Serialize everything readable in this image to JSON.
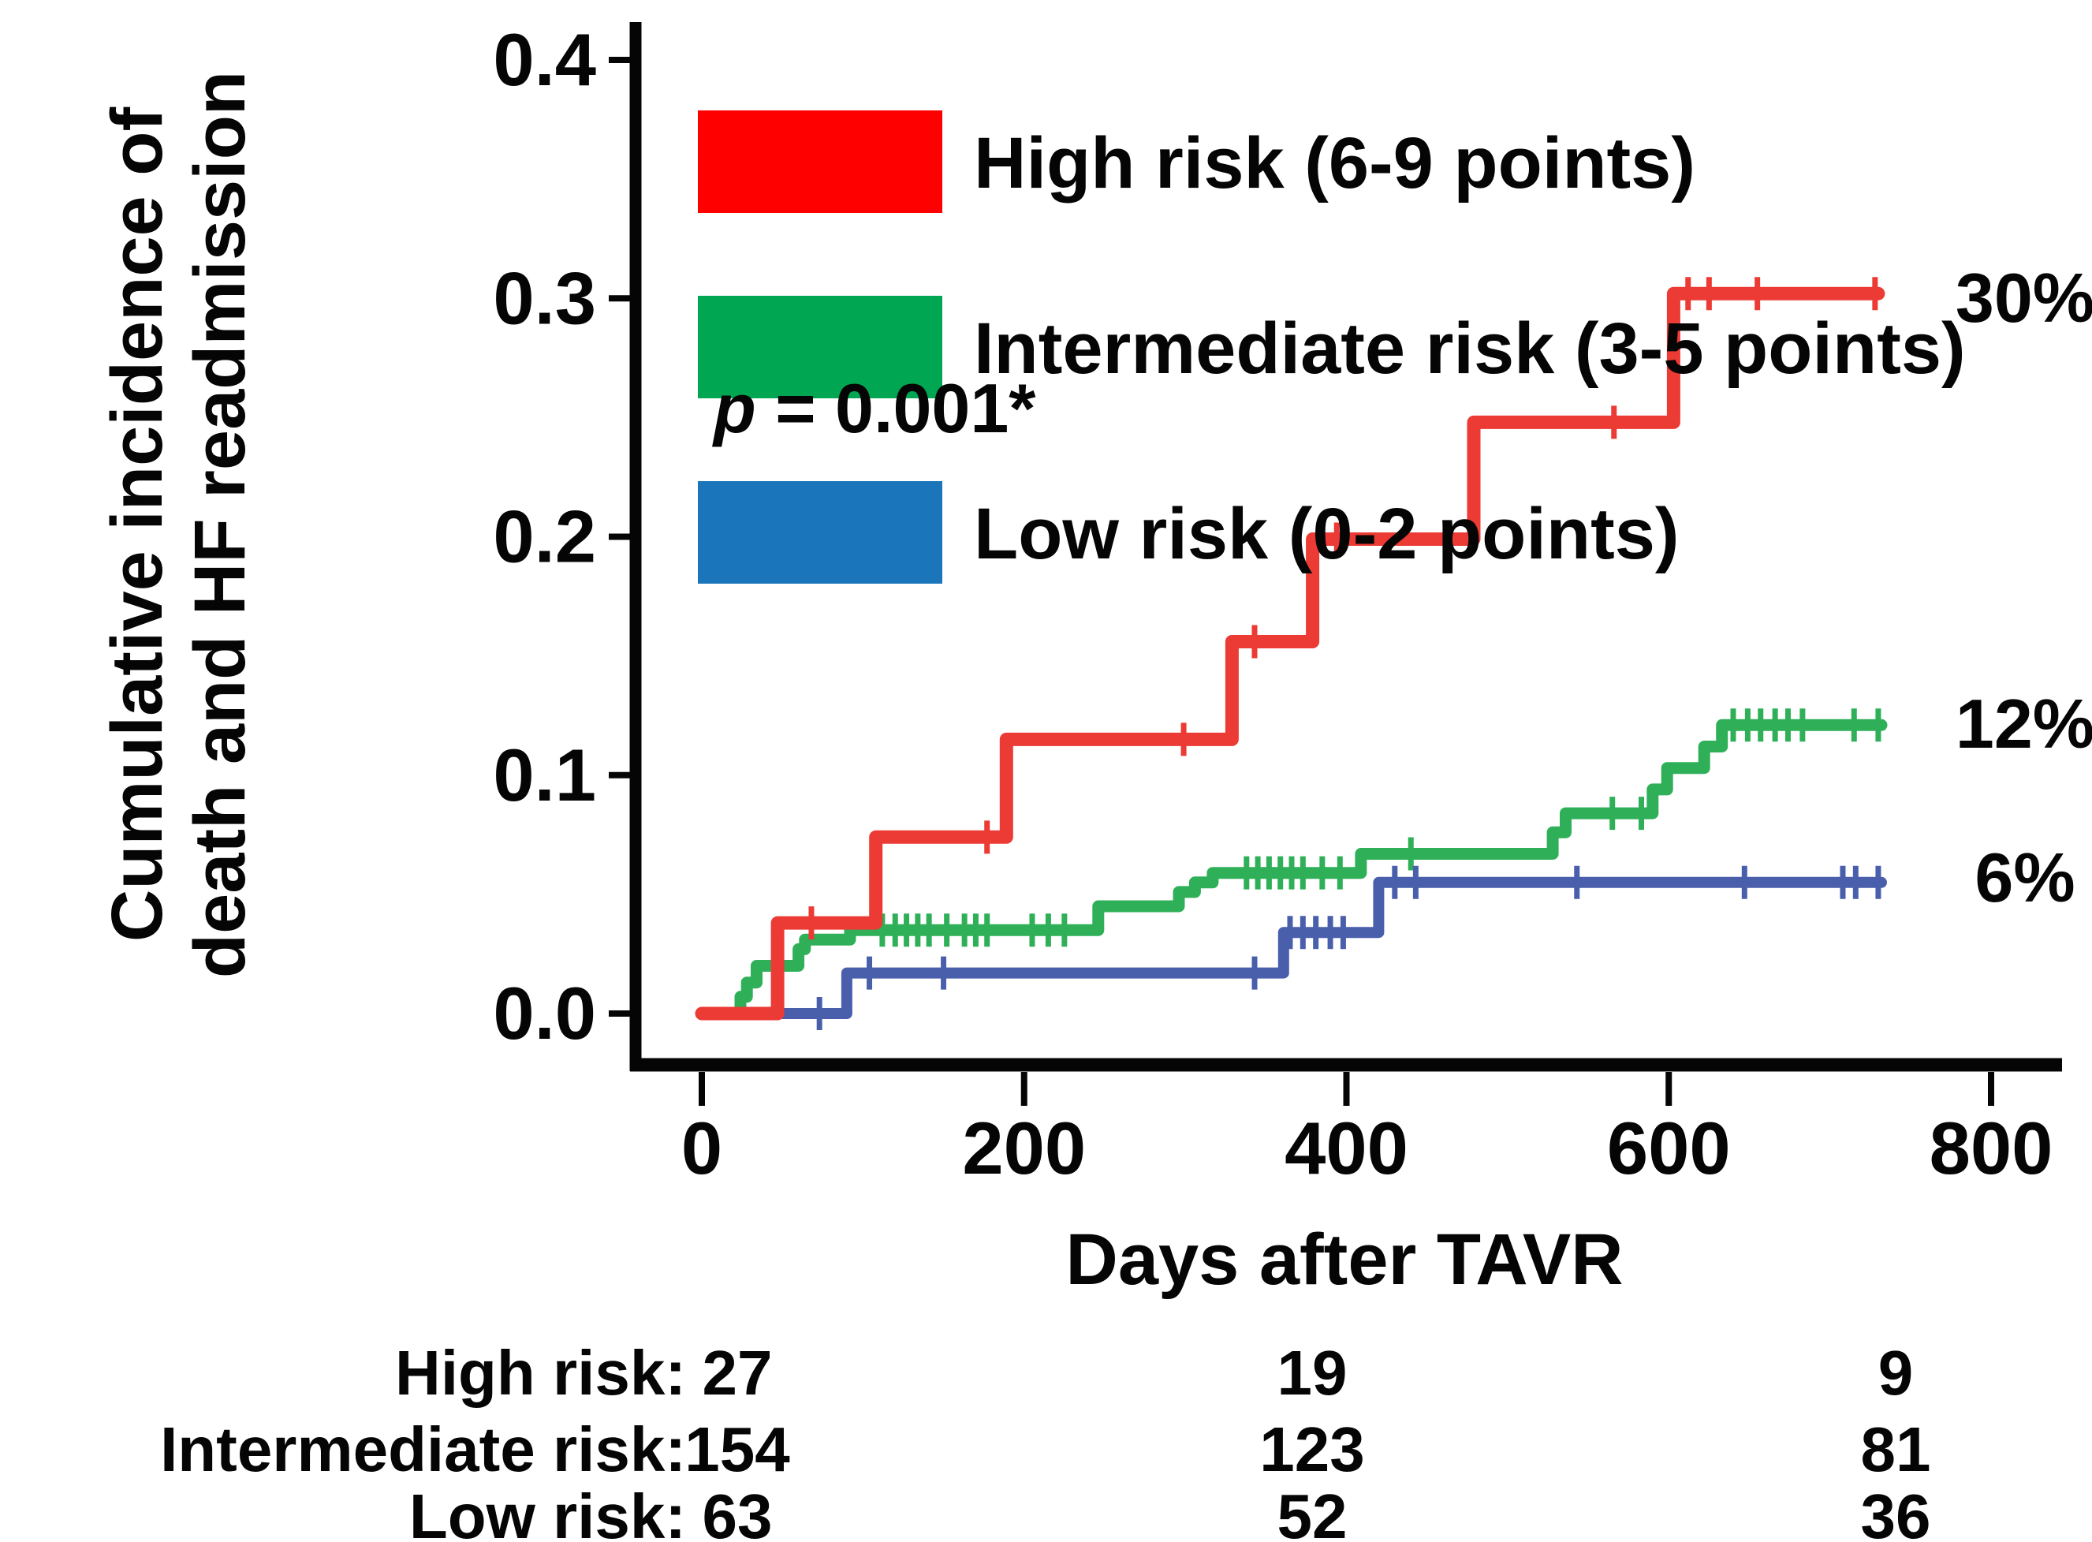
{
  "annotation": {
    "p_symbol": "p",
    "p_rest": " = 0.001*"
  },
  "legend": {
    "items": [
      {
        "label": "High risk (6-9 points)",
        "color": "#FF0000"
      },
      {
        "label": "Intermediate risk (3-5 points)",
        "color": "#00A651"
      },
      {
        "label": "Low risk (0-2 points)",
        "color": "#1B75BB"
      }
    ]
  },
  "chart_data": {
    "type": "line",
    "subtype": "step-cumulative-incidence",
    "title": "",
    "xlabel": "Days after TAVR",
    "ylabel_line1": "Cumulative incidence of",
    "ylabel_line2": "death and HF readmission",
    "xlim": [
      0,
      800
    ],
    "ylim": [
      0,
      0.4
    ],
    "grid": false,
    "legend_position": "top-left-inside",
    "x_ticks": {
      "values": [
        0,
        200,
        400,
        600,
        800
      ],
      "labels": [
        "0",
        "200",
        "400",
        "600",
        "800"
      ]
    },
    "y_ticks": {
      "values": [
        0,
        0.1,
        0.2,
        0.3,
        0.4
      ],
      "labels": [
        "0.0",
        "0.1",
        "0.2",
        "0.3",
        "0.4"
      ]
    },
    "series": [
      {
        "name": "Intermediate risk (3-5 points)",
        "color": "#2FB058",
        "line_width": 15,
        "end_label": "12%",
        "end_value": 0.121,
        "points": [
          [
            0,
            0
          ],
          [
            24,
            0
          ],
          [
            24,
            0.007
          ],
          [
            28,
            0.007
          ],
          [
            28,
            0.013
          ],
          [
            34,
            0.013
          ],
          [
            34,
            0.02
          ],
          [
            60,
            0.02
          ],
          [
            60,
            0.027
          ],
          [
            64,
            0.027
          ],
          [
            64,
            0.031
          ],
          [
            92,
            0.031
          ],
          [
            92,
            0.035
          ],
          [
            246,
            0.035
          ],
          [
            246,
            0.045
          ],
          [
            296,
            0.045
          ],
          [
            296,
            0.051
          ],
          [
            306,
            0.051
          ],
          [
            306,
            0.055
          ],
          [
            317,
            0.055
          ],
          [
            317,
            0.059
          ],
          [
            409,
            0.059
          ],
          [
            409,
            0.067
          ],
          [
            528,
            0.067
          ],
          [
            528,
            0.076
          ],
          [
            536,
            0.076
          ],
          [
            536,
            0.084
          ],
          [
            590,
            0.084
          ],
          [
            590,
            0.094
          ],
          [
            599,
            0.094
          ],
          [
            599,
            0.103
          ],
          [
            622,
            0.103
          ],
          [
            622,
            0.112
          ],
          [
            633,
            0.112
          ],
          [
            633,
            0.121
          ],
          [
            732,
            0.121
          ]
        ],
        "censor_marks": [
          [
            112,
            0.035
          ],
          [
            120,
            0.035
          ],
          [
            127,
            0.035
          ],
          [
            134,
            0.035
          ],
          [
            141,
            0.035
          ],
          [
            152,
            0.035
          ],
          [
            163,
            0.035
          ],
          [
            170,
            0.035
          ],
          [
            177,
            0.035
          ],
          [
            205,
            0.035
          ],
          [
            215,
            0.035
          ],
          [
            225,
            0.035
          ],
          [
            338,
            0.059
          ],
          [
            345,
            0.059
          ],
          [
            352,
            0.059
          ],
          [
            359,
            0.059
          ],
          [
            366,
            0.059
          ],
          [
            373,
            0.059
          ],
          [
            385,
            0.059
          ],
          [
            396,
            0.059
          ],
          [
            440,
            0.067
          ],
          [
            565,
            0.084
          ],
          [
            583,
            0.084
          ],
          [
            640,
            0.121
          ],
          [
            649,
            0.121
          ],
          [
            657,
            0.121
          ],
          [
            666,
            0.121
          ],
          [
            674,
            0.121
          ],
          [
            683,
            0.121
          ],
          [
            715,
            0.121
          ],
          [
            730,
            0.121
          ]
        ]
      },
      {
        "name": "Low risk (0-2 points)",
        "color": "#4A5FAC",
        "line_width": 14,
        "end_label": "6%",
        "end_value": 0.055,
        "points": [
          [
            0,
            0
          ],
          [
            90,
            0
          ],
          [
            90,
            0.017
          ],
          [
            361,
            0.017
          ],
          [
            361,
            0.034
          ],
          [
            420,
            0.034
          ],
          [
            420,
            0.055
          ],
          [
            732,
            0.055
          ]
        ],
        "censor_marks": [
          [
            73,
            0
          ],
          [
            104,
            0.017
          ],
          [
            150,
            0.017
          ],
          [
            343,
            0.017
          ],
          [
            365,
            0.034
          ],
          [
            373,
            0.034
          ],
          [
            381,
            0.034
          ],
          [
            390,
            0.034
          ],
          [
            398,
            0.034
          ],
          [
            430,
            0.055
          ],
          [
            443,
            0.055
          ],
          [
            543,
            0.055
          ],
          [
            647,
            0.055
          ],
          [
            708,
            0.055
          ],
          [
            716,
            0.055
          ],
          [
            730,
            0.055
          ]
        ]
      },
      {
        "name": "High risk (6-9 points)",
        "color": "#EC3A34",
        "line_width": 17,
        "end_label": "30%",
        "end_value": 0.302,
        "points": [
          [
            0,
            0
          ],
          [
            47,
            0
          ],
          [
            47,
            0.038
          ],
          [
            108,
            0.038
          ],
          [
            108,
            0.074
          ],
          [
            189,
            0.074
          ],
          [
            189,
            0.115
          ],
          [
            329,
            0.115
          ],
          [
            329,
            0.156
          ],
          [
            379,
            0.156
          ],
          [
            379,
            0.199
          ],
          [
            479,
            0.199
          ],
          [
            479,
            0.248
          ],
          [
            603,
            0.248
          ],
          [
            603,
            0.302
          ],
          [
            730,
            0.302
          ]
        ],
        "censor_marks": [
          [
            68,
            0.038
          ],
          [
            177,
            0.074
          ],
          [
            299,
            0.115
          ],
          [
            343,
            0.156
          ],
          [
            394,
            0.199
          ],
          [
            566,
            0.248
          ],
          [
            612,
            0.302
          ],
          [
            625,
            0.302
          ],
          [
            655,
            0.302
          ],
          [
            728,
            0.302
          ]
        ]
      }
    ]
  },
  "end_labels": {
    "high": "30%",
    "intermediate": "12%",
    "low": "6%"
  },
  "risk_table": {
    "rows": [
      {
        "label": "High risk:",
        "values": [
          "27",
          "19",
          "9"
        ]
      },
      {
        "label": "Intermediate risk:",
        "values": [
          "154",
          "123",
          "81"
        ]
      },
      {
        "label": "Low risk:",
        "values": [
          "63",
          "52",
          "36"
        ]
      }
    ]
  }
}
